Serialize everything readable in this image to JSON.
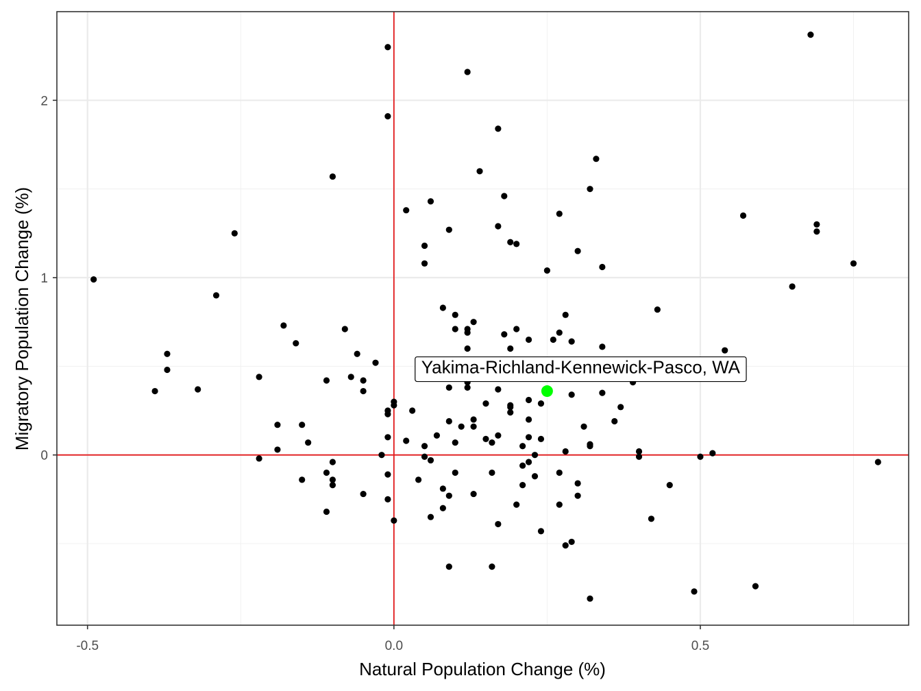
{
  "chart_data": {
    "type": "scatter",
    "xlabel": "Natural Population Change (%)",
    "ylabel": "Migratory Population Change (%)",
    "xlim": [
      -0.55,
      0.84
    ],
    "ylim": [
      -0.96,
      2.5
    ],
    "x_ticks": [
      {
        "value": -0.5,
        "label": "-0.5"
      },
      {
        "value": 0.0,
        "label": "0.0"
      },
      {
        "value": 0.5,
        "label": "0.5"
      }
    ],
    "y_ticks": [
      {
        "value": 0,
        "label": "0"
      },
      {
        "value": 1,
        "label": "1"
      },
      {
        "value": 2,
        "label": "2"
      }
    ],
    "reference_lines": {
      "x": 0,
      "y": 0,
      "color": "#e41a1c"
    },
    "point_color": "#000000",
    "highlight": {
      "label": "Yakima-Richland-Kennewick-Pasco, WA",
      "x": 0.25,
      "y": 0.36,
      "color": "#00ff00"
    },
    "points": [
      [
        -0.49,
        0.99
      ],
      [
        -0.39,
        0.36
      ],
      [
        -0.37,
        0.57
      ],
      [
        -0.37,
        0.48
      ],
      [
        -0.32,
        0.37
      ],
      [
        -0.29,
        0.9
      ],
      [
        -0.26,
        1.25
      ],
      [
        -0.22,
        0.44
      ],
      [
        -0.22,
        -0.02
      ],
      [
        -0.19,
        0.17
      ],
      [
        -0.19,
        0.03
      ],
      [
        -0.18,
        0.73
      ],
      [
        -0.16,
        0.63
      ],
      [
        -0.15,
        0.17
      ],
      [
        -0.15,
        -0.14
      ],
      [
        -0.14,
        0.07
      ],
      [
        -0.11,
        0.42
      ],
      [
        -0.11,
        -0.1
      ],
      [
        -0.11,
        -0.32
      ],
      [
        -0.1,
        1.57
      ],
      [
        -0.1,
        -0.04
      ],
      [
        -0.1,
        -0.14
      ],
      [
        -0.1,
        -0.17
      ],
      [
        -0.08,
        0.71
      ],
      [
        -0.07,
        0.44
      ],
      [
        -0.06,
        0.57
      ],
      [
        -0.05,
        0.42
      ],
      [
        -0.05,
        0.36
      ],
      [
        -0.05,
        -0.22
      ],
      [
        -0.03,
        0.52
      ],
      [
        -0.02,
        0.0
      ],
      [
        -0.01,
        2.3
      ],
      [
        -0.01,
        1.91
      ],
      [
        -0.01,
        0.25
      ],
      [
        -0.01,
        0.23
      ],
      [
        -0.01,
        0.1
      ],
      [
        -0.01,
        -0.11
      ],
      [
        -0.01,
        -0.25
      ],
      [
        0.0,
        0.3
      ],
      [
        0.0,
        0.28
      ],
      [
        0.0,
        -0.37
      ],
      [
        0.02,
        1.38
      ],
      [
        0.02,
        0.08
      ],
      [
        0.03,
        0.25
      ],
      [
        0.04,
        -0.14
      ],
      [
        0.05,
        1.18
      ],
      [
        0.05,
        1.08
      ],
      [
        0.05,
        0.05
      ],
      [
        0.05,
        -0.01
      ],
      [
        0.06,
        1.43
      ],
      [
        0.06,
        -0.03
      ],
      [
        0.06,
        -0.35
      ],
      [
        0.07,
        0.11
      ],
      [
        0.08,
        0.83
      ],
      [
        0.08,
        -0.19
      ],
      [
        0.08,
        -0.3
      ],
      [
        0.09,
        1.27
      ],
      [
        0.09,
        0.38
      ],
      [
        0.09,
        0.19
      ],
      [
        0.09,
        -0.23
      ],
      [
        0.09,
        -0.63
      ],
      [
        0.1,
        0.79
      ],
      [
        0.1,
        0.71
      ],
      [
        0.1,
        0.07
      ],
      [
        0.1,
        -0.1
      ],
      [
        0.11,
        0.16
      ],
      [
        0.12,
        2.16
      ],
      [
        0.12,
        0.71
      ],
      [
        0.12,
        0.69
      ],
      [
        0.12,
        0.6
      ],
      [
        0.12,
        0.41
      ],
      [
        0.12,
        0.38
      ],
      [
        0.13,
        0.75
      ],
      [
        0.13,
        0.2
      ],
      [
        0.13,
        0.16
      ],
      [
        0.13,
        -0.22
      ],
      [
        0.14,
        1.6
      ],
      [
        0.15,
        0.29
      ],
      [
        0.15,
        0.09
      ],
      [
        0.16,
        0.07
      ],
      [
        0.16,
        -0.1
      ],
      [
        0.16,
        -0.63
      ],
      [
        0.17,
        1.84
      ],
      [
        0.17,
        1.29
      ],
      [
        0.17,
        0.37
      ],
      [
        0.17,
        0.11
      ],
      [
        0.17,
        -0.39
      ],
      [
        0.18,
        1.46
      ],
      [
        0.18,
        0.68
      ],
      [
        0.19,
        1.2
      ],
      [
        0.19,
        0.6
      ],
      [
        0.19,
        0.43
      ],
      [
        0.19,
        0.28
      ],
      [
        0.19,
        0.27
      ],
      [
        0.19,
        0.24
      ],
      [
        0.2,
        1.19
      ],
      [
        0.2,
        0.71
      ],
      [
        0.2,
        -0.28
      ],
      [
        0.21,
        0.05
      ],
      [
        0.21,
        -0.06
      ],
      [
        0.21,
        -0.17
      ],
      [
        0.22,
        0.65
      ],
      [
        0.22,
        0.31
      ],
      [
        0.22,
        0.2
      ],
      [
        0.22,
        0.1
      ],
      [
        0.22,
        -0.04
      ],
      [
        0.23,
        0.0
      ],
      [
        0.23,
        -0.12
      ],
      [
        0.24,
        0.29
      ],
      [
        0.24,
        0.09
      ],
      [
        0.24,
        -0.43
      ],
      [
        0.25,
        1.04
      ],
      [
        0.26,
        0.65
      ],
      [
        0.27,
        1.36
      ],
      [
        0.27,
        0.69
      ],
      [
        0.27,
        -0.1
      ],
      [
        0.27,
        -0.28
      ],
      [
        0.28,
        0.79
      ],
      [
        0.28,
        0.02
      ],
      [
        0.28,
        -0.51
      ],
      [
        0.29,
        0.64
      ],
      [
        0.29,
        0.34
      ],
      [
        0.29,
        -0.49
      ],
      [
        0.3,
        1.15
      ],
      [
        0.3,
        -0.16
      ],
      [
        0.3,
        -0.23
      ],
      [
        0.31,
        0.16
      ],
      [
        0.32,
        1.5
      ],
      [
        0.32,
        0.06
      ],
      [
        0.32,
        0.05
      ],
      [
        0.32,
        -0.81
      ],
      [
        0.33,
        1.67
      ],
      [
        0.34,
        1.06
      ],
      [
        0.34,
        0.61
      ],
      [
        0.34,
        0.35
      ],
      [
        0.36,
        0.19
      ],
      [
        0.37,
        0.27
      ],
      [
        0.39,
        0.41
      ],
      [
        0.4,
        0.02
      ],
      [
        0.4,
        -0.01
      ],
      [
        0.42,
        -0.36
      ],
      [
        0.43,
        0.82
      ],
      [
        0.45,
        -0.17
      ],
      [
        0.49,
        -0.77
      ],
      [
        0.5,
        -0.01
      ],
      [
        0.52,
        0.01
      ],
      [
        0.54,
        0.59
      ],
      [
        0.57,
        1.35
      ],
      [
        0.59,
        -0.74
      ],
      [
        0.65,
        0.95
      ],
      [
        0.68,
        2.37
      ],
      [
        0.69,
        1.3
      ],
      [
        0.69,
        1.26
      ],
      [
        0.75,
        1.08
      ],
      [
        0.79,
        -0.04
      ]
    ]
  }
}
